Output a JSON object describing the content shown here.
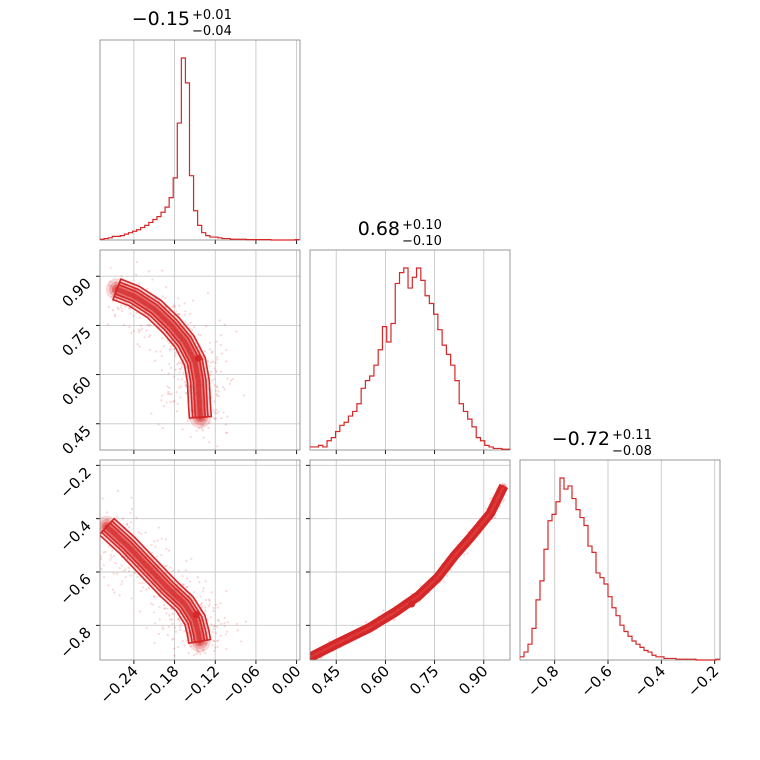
{
  "chart_data": {
    "type": "corner",
    "color": "#d62728",
    "parameters": [
      {
        "title_value": "−0.15",
        "title_plus": "+0.01",
        "title_minus": "−0.04",
        "range": [
          -0.29,
          0.005
        ],
        "ticks": [
          -0.24,
          -0.18,
          -0.12,
          -0.06,
          0.0
        ],
        "tick_labels": [
          "−0.24",
          "−0.18",
          "−0.12",
          "−0.06",
          "0.00"
        ]
      },
      {
        "title_value": "0.68",
        "title_plus": "+0.10",
        "title_minus": "−0.10",
        "range": [
          0.37,
          0.98
        ],
        "ticks": [
          0.45,
          0.6,
          0.75,
          0.9
        ],
        "tick_labels": [
          "0.45",
          "0.60",
          "0.75",
          "0.90"
        ]
      },
      {
        "title_value": "−0.72",
        "title_plus": "+0.11",
        "title_minus": "−0.08",
        "range": [
          -0.93,
          -0.18
        ],
        "ticks": [
          -0.8,
          -0.6,
          -0.4,
          -0.2
        ],
        "tick_labels": [
          "−0.8",
          "−0.6",
          "−0.4",
          "−0.2"
        ]
      }
    ],
    "histograms": [
      {
        "bin_edges": [
          -0.29,
          -0.284,
          -0.278,
          -0.272,
          -0.266,
          -0.26,
          -0.254,
          -0.248,
          -0.242,
          -0.236,
          -0.23,
          -0.224,
          -0.218,
          -0.212,
          -0.206,
          -0.2,
          -0.194,
          -0.188,
          -0.182,
          -0.176,
          -0.17,
          -0.164,
          -0.158,
          -0.152,
          -0.146,
          -0.14,
          -0.134,
          -0.128,
          -0.122,
          -0.116,
          -0.11,
          -0.104,
          -0.098,
          -0.092,
          -0.086,
          -0.08,
          -0.074,
          -0.068,
          -0.062,
          -0.056,
          -0.05,
          -0.044,
          -0.038,
          -0.032,
          -0.026,
          -0.02,
          -0.014,
          -0.008,
          -0.002,
          0.004
        ],
        "counts": [
          1,
          2,
          3,
          5,
          5,
          6,
          8,
          10,
          12,
          14,
          17,
          20,
          24,
          28,
          32,
          38,
          45,
          58,
          85,
          160,
          249,
          215,
          88,
          40,
          20,
          10,
          6,
          4,
          4,
          3,
          2,
          2,
          1,
          1,
          1,
          1,
          0.5,
          0.5,
          0.5,
          0.5,
          0.5,
          0.5,
          0,
          0,
          0,
          0,
          0,
          0,
          0.5
        ]
      },
      {
        "bin_edges": [
          0.37,
          0.383,
          0.396,
          0.409,
          0.422,
          0.435,
          0.448,
          0.461,
          0.474,
          0.487,
          0.5,
          0.513,
          0.526,
          0.539,
          0.552,
          0.565,
          0.578,
          0.591,
          0.604,
          0.617,
          0.63,
          0.643,
          0.656,
          0.669,
          0.682,
          0.695,
          0.708,
          0.721,
          0.734,
          0.747,
          0.76,
          0.773,
          0.786,
          0.799,
          0.812,
          0.825,
          0.838,
          0.851,
          0.864,
          0.877,
          0.89,
          0.903,
          0.916,
          0.929,
          0.942,
          0.955,
          0.968,
          0.981
        ],
        "counts": [
          2,
          2,
          3,
          2,
          6,
          8,
          12,
          16,
          18,
          22,
          25,
          30,
          40,
          45,
          48,
          55,
          65,
          80,
          70,
          82,
          108,
          115,
          118,
          105,
          112,
          118,
          110,
          100,
          95,
          88,
          78,
          68,
          62,
          55,
          45,
          30,
          25,
          20,
          15,
          8,
          6,
          3,
          2,
          1,
          1,
          0.5,
          0.5
        ]
      },
      {
        "bin_edges": [
          -0.93,
          -0.915,
          -0.9,
          -0.885,
          -0.87,
          -0.855,
          -0.84,
          -0.825,
          -0.81,
          -0.795,
          -0.78,
          -0.765,
          -0.75,
          -0.735,
          -0.72,
          -0.705,
          -0.69,
          -0.675,
          -0.66,
          -0.645,
          -0.63,
          -0.615,
          -0.6,
          -0.585,
          -0.57,
          -0.555,
          -0.54,
          -0.525,
          -0.51,
          -0.495,
          -0.48,
          -0.465,
          -0.45,
          -0.435,
          -0.42,
          -0.405,
          -0.39,
          -0.375,
          -0.36,
          -0.345,
          -0.33,
          -0.315,
          -0.3,
          -0.285,
          -0.27,
          -0.255,
          -0.24,
          -0.225,
          -0.21,
          -0.195,
          -0.18
        ],
        "counts": [
          2,
          5,
          10,
          20,
          38,
          50,
          70,
          88,
          92,
          100,
          115,
          108,
          110,
          102,
          95,
          90,
          85,
          72,
          68,
          55,
          52,
          48,
          40,
          33,
          28,
          22,
          18,
          15,
          12,
          10,
          8,
          6,
          5,
          3,
          2,
          2,
          1,
          1,
          1,
          0.5,
          0.5,
          0.5,
          0.5,
          0.5,
          0,
          0,
          0,
          0,
          0,
          0.5
        ]
      }
    ],
    "contours_2d": [
      {
        "pair": [
          0,
          1
        ],
        "ridge": [
          [
            -0.265,
            0.86
          ],
          [
            -0.24,
            0.84
          ],
          [
            -0.21,
            0.8
          ],
          [
            -0.185,
            0.75
          ],
          [
            -0.165,
            0.7
          ],
          [
            -0.15,
            0.64
          ],
          [
            -0.145,
            0.58
          ],
          [
            -0.143,
            0.5
          ],
          [
            -0.142,
            0.47
          ]
        ],
        "widths": [
          0.01,
          0.012,
          0.015,
          0.02,
          0.025,
          0.03,
          0.025,
          0.018,
          0.012
        ],
        "peak": [
          -0.145,
          0.65
        ]
      },
      {
        "pair": [
          0,
          2
        ],
        "ridge": [
          [
            -0.28,
            -0.43
          ],
          [
            -0.25,
            -0.5
          ],
          [
            -0.22,
            -0.58
          ],
          [
            -0.19,
            -0.66
          ],
          [
            -0.165,
            -0.72
          ],
          [
            -0.15,
            -0.78
          ],
          [
            -0.145,
            -0.83
          ],
          [
            -0.143,
            -0.86
          ]
        ],
        "widths": [
          0.008,
          0.012,
          0.016,
          0.022,
          0.028,
          0.03,
          0.022,
          0.015
        ],
        "peak": [
          -0.148,
          -0.76
        ]
      },
      {
        "pair": [
          1,
          2
        ],
        "ridge": [
          [
            0.37,
            -0.92
          ],
          [
            0.45,
            -0.87
          ],
          [
            0.55,
            -0.81
          ],
          [
            0.63,
            -0.75
          ],
          [
            0.7,
            -0.69
          ],
          [
            0.76,
            -0.62
          ],
          [
            0.81,
            -0.54
          ],
          [
            0.86,
            -0.47
          ],
          [
            0.92,
            -0.38
          ],
          [
            0.96,
            -0.28
          ]
        ],
        "widths": [
          0.008,
          0.01,
          0.014,
          0.016,
          0.016,
          0.015,
          0.013,
          0.01,
          0.008,
          0.006
        ],
        "peak": [
          0.68,
          -0.72
        ]
      }
    ]
  }
}
